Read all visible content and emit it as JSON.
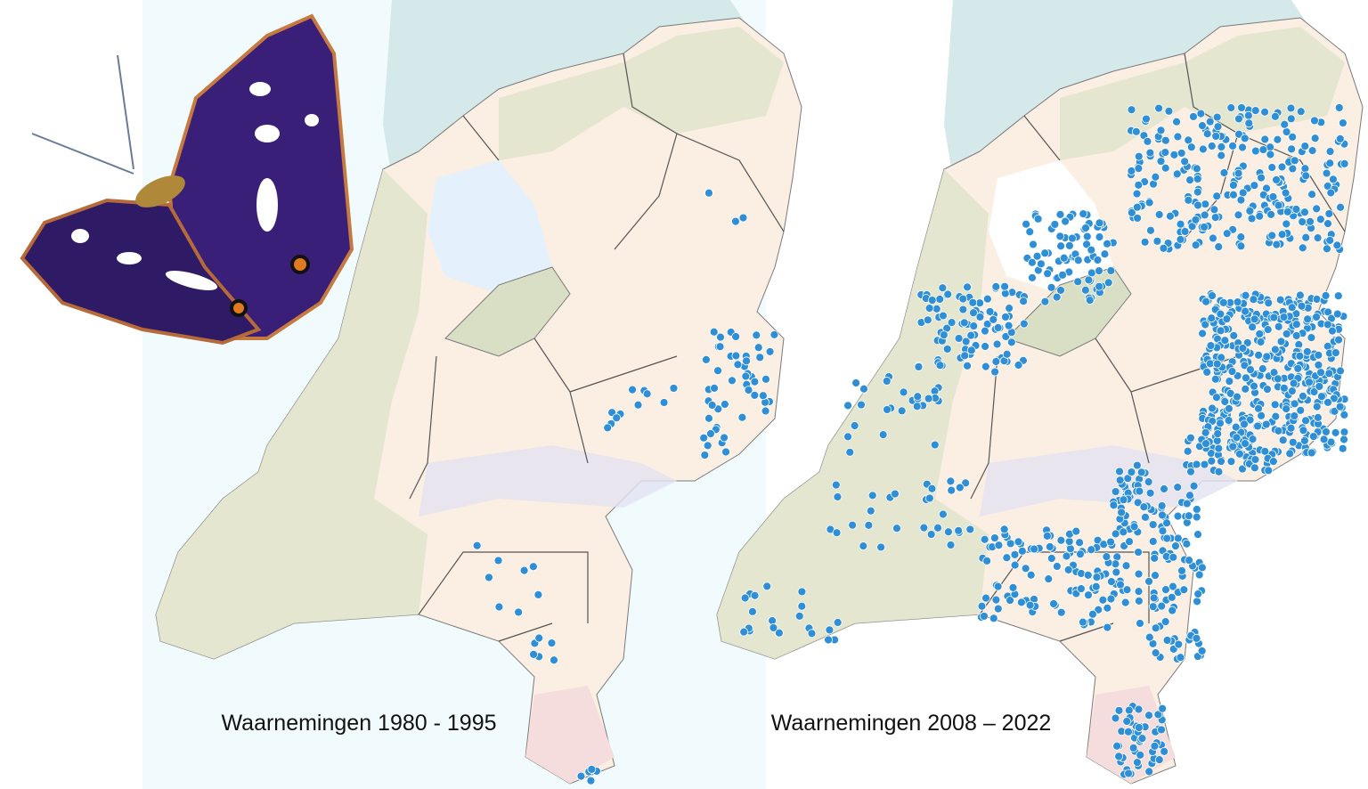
{
  "maps": [
    {
      "label": "Waarnemingen 1980 - 1995"
    },
    {
      "label": "Waarnemingen 2008 – 2022"
    }
  ]
}
